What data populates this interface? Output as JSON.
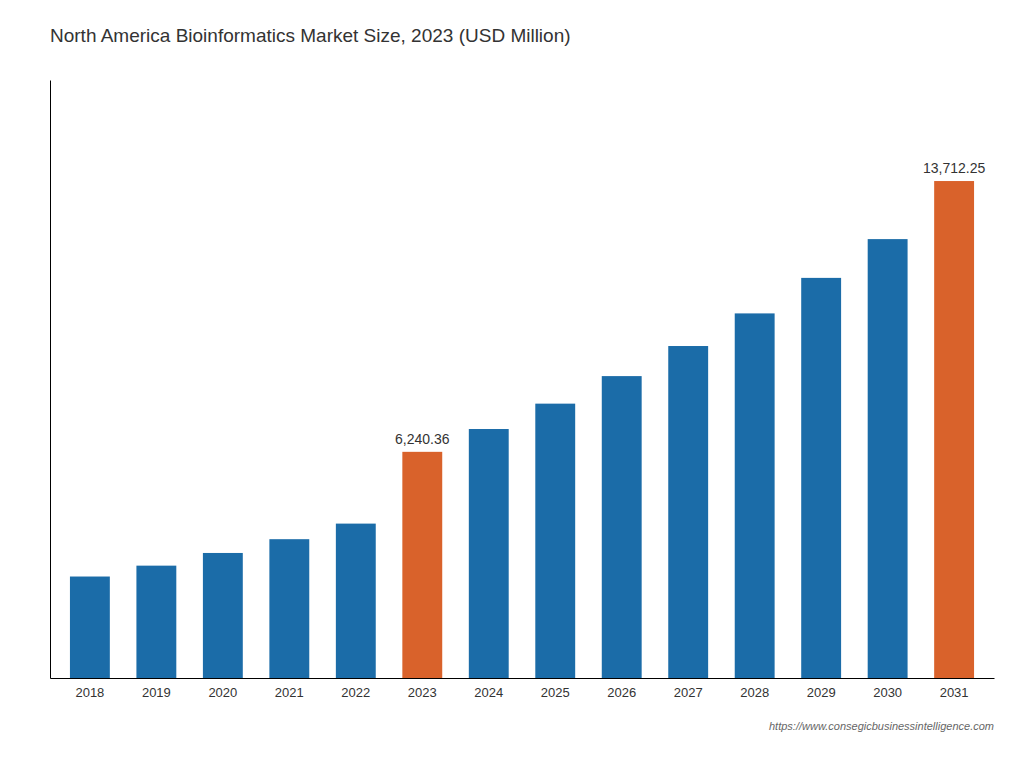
{
  "chart_data": {
    "type": "bar",
    "title": "North America Bioinformatics Market Size, 2023 (USD Million)",
    "categories": [
      "2018",
      "2019",
      "2020",
      "2021",
      "2022",
      "2023",
      "2024",
      "2025",
      "2026",
      "2027",
      "2028",
      "2029",
      "2030",
      "2031"
    ],
    "values": [
      2800,
      3100,
      3450,
      3830,
      4260,
      6240.36,
      6870,
      7570,
      8330,
      9160,
      10060,
      11040,
      12110,
      13712.25
    ],
    "colors": [
      "#1b6ca8",
      "#1b6ca8",
      "#1b6ca8",
      "#1b6ca8",
      "#1b6ca8",
      "#d9622b",
      "#1b6ca8",
      "#1b6ca8",
      "#1b6ca8",
      "#1b6ca8",
      "#1b6ca8",
      "#1b6ca8",
      "#1b6ca8",
      "#d9622b"
    ],
    "data_labels": true,
    "value_labels": [
      null,
      null,
      null,
      null,
      null,
      "6,240.36",
      null,
      null,
      null,
      null,
      null,
      null,
      null,
      "13,712.25"
    ],
    "annotations": [
      "https://www.consegicbusinessintelligence.com"
    ],
    "ylim": [
      0,
      16500
    ],
    "tick_labels": "x",
    "grid": false
  }
}
